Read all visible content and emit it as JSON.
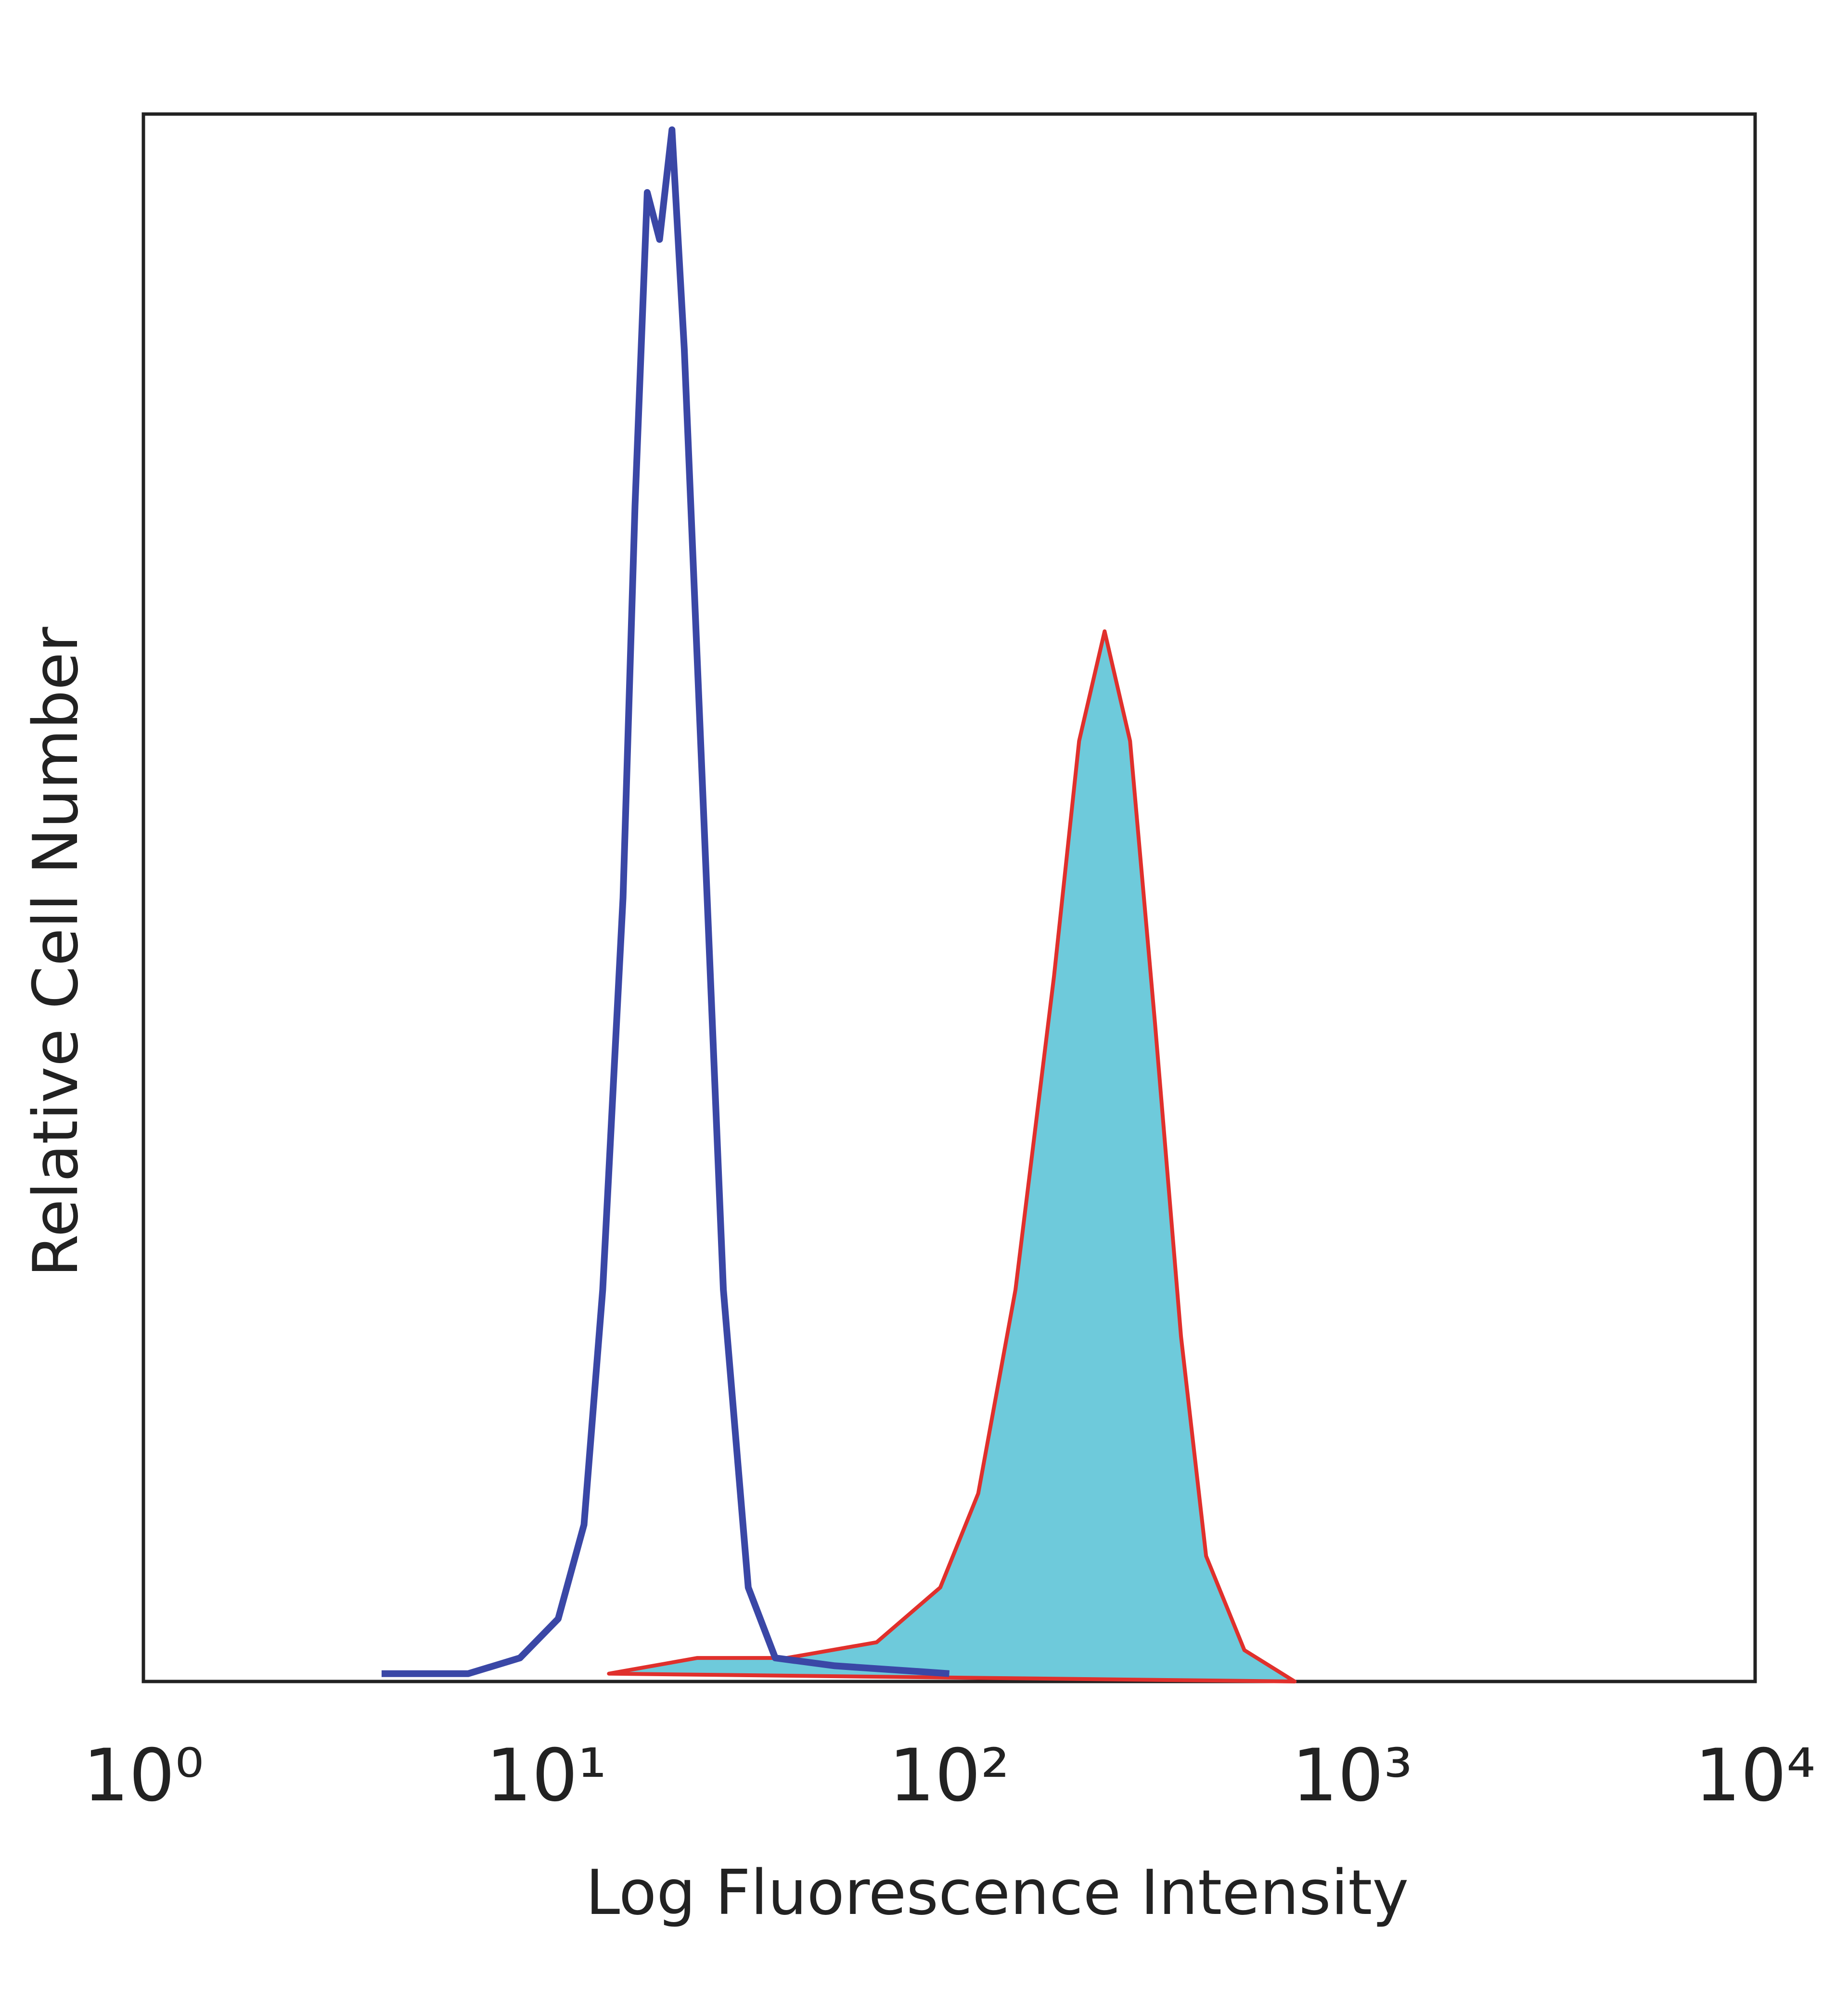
{
  "chart_data": {
    "type": "histogram-overlay",
    "xlabel": "Log Fluorescence Intensity",
    "ylabel": "Relative Cell Number",
    "xscale": "log",
    "xlim": [
      1,
      10000
    ],
    "ylim": [
      0,
      100
    ],
    "xticks": [
      {
        "value": 1,
        "label": "10⁰"
      },
      {
        "value": 10,
        "label": "10¹"
      },
      {
        "value": 100,
        "label": "10²"
      },
      {
        "value": 1000,
        "label": "10³"
      },
      {
        "value": 10000,
        "label": "10⁴"
      }
    ],
    "series": [
      {
        "color": "#3a47a6",
        "fill": "none",
        "x": [
          3.9,
          6.4,
          8.6,
          10.7,
          12.4,
          13.8,
          15.5,
          16.6,
          17.8,
          19.1,
          20.5,
          22,
          24.6,
          27.5,
          31.7,
          37,
          52,
          100
        ],
        "values": [
          0.5,
          0.5,
          1.5,
          4,
          10,
          25,
          50,
          75,
          95,
          92,
          99,
          85,
          55,
          25,
          6,
          1.5,
          1,
          0.5
        ]
      },
      {
        "color": "#e0302c",
        "fill": "#6ecadb",
        "x": [
          14.3,
          23.7,
          39.5,
          66,
          95,
          118,
          146,
          182,
          210,
          243,
          281,
          324,
          376,
          434,
          540,
          720
        ],
        "values": [
          0.5,
          1.5,
          1.5,
          2.5,
          6,
          12,
          25,
          45,
          60,
          67,
          60,
          42,
          22,
          8,
          2,
          0
        ]
      }
    ]
  }
}
